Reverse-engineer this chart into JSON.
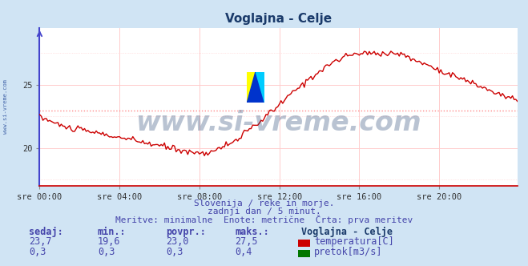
{
  "title": "Voglajna - Celje",
  "bg_color": "#d0e4f4",
  "plot_bg_color": "#ffffff",
  "grid_color_h": "#ffcccc",
  "grid_color_v": "#ffcccc",
  "left_axis_color": "#4444cc",
  "bottom_axis_color": "#cc0000",
  "xlabel_ticks": [
    "sre 00:00",
    "sre 04:00",
    "sre 08:00",
    "sre 12:00",
    "sre 16:00",
    "sre 20:00"
  ],
  "ylabel_ticks": [
    20,
    25
  ],
  "ylim": [
    17.0,
    29.5
  ],
  "xlim": [
    0,
    287
  ],
  "avg_line_value": 23.0,
  "avg_line_color": "#ff8888",
  "avg_line_style": "dotted",
  "temp_color": "#cc0000",
  "flow_color": "#007700",
  "watermark_text": "www.si-vreme.com",
  "watermark_color": "#1a3a6a",
  "watermark_alpha": 0.3,
  "watermark_fontsize": 24,
  "side_text": "www.si-vreme.com",
  "footer_line1": "Slovenija / reke in morje.",
  "footer_line2": "zadnji dan / 5 minut.",
  "footer_line3": "Meritve: minimalne  Enote: metrične  Črta: prva meritev",
  "footer_color": "#4444aa",
  "legend_title": "Voglajna - Celje",
  "legend_items": [
    "temperatura[C]",
    "pretok[m3/s]"
  ],
  "legend_colors": [
    "#cc0000",
    "#007700"
  ],
  "stats_headers": [
    "sedaj:",
    "min.:",
    "povpr.:",
    "maks.:"
  ],
  "stats_temp": [
    "23,7",
    "19,6",
    "23,0",
    "27,5"
  ],
  "stats_flow": [
    "0,3",
    "0,3",
    "0,3",
    "0,4"
  ],
  "stats_color": "#4444aa",
  "title_color": "#1a3a6a",
  "num_points": 288,
  "logo_yellow": "#ffff00",
  "logo_blue": "#0033cc",
  "logo_cyan": "#00ccff"
}
